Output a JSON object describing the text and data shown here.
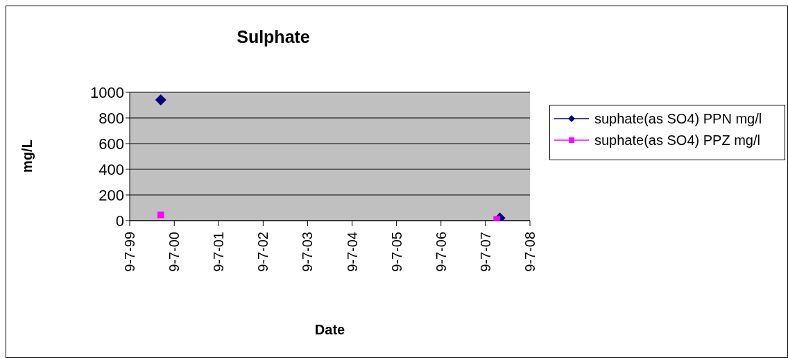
{
  "chart_data": {
    "type": "scatter",
    "title": "Sulphate",
    "xlabel": "Date",
    "ylabel": "mg/L",
    "series": [
      {
        "name": "suphate(as SO4) PPN mg/l",
        "color": "#000080",
        "marker": "diamond",
        "x": [
          "2000-03-20",
          "2007-11-05"
        ],
        "values": [
          940,
          20
        ]
      },
      {
        "name": "suphate(as SO4) PPZ mg/l",
        "color": "#ff00ff",
        "marker": "square",
        "x": [
          "2000-03-20",
          "2007-10-10"
        ],
        "values": [
          45,
          10
        ]
      }
    ],
    "xlim": [
      "1999-07-09",
      "2008-07-09"
    ],
    "xticks": [
      {
        "value": "1999-07-09",
        "label": "9-7-99"
      },
      {
        "value": "2000-07-09",
        "label": "9-7-00"
      },
      {
        "value": "2001-07-09",
        "label": "9-7-01"
      },
      {
        "value": "2002-07-09",
        "label": "9-7-02"
      },
      {
        "value": "2003-07-09",
        "label": "9-7-03"
      },
      {
        "value": "2004-07-09",
        "label": "9-7-04"
      },
      {
        "value": "2005-07-09",
        "label": "9-7-05"
      },
      {
        "value": "2006-07-09",
        "label": "9-7-06"
      },
      {
        "value": "2007-07-09",
        "label": "9-7-07"
      },
      {
        "value": "2008-07-09",
        "label": "9-7-08"
      }
    ],
    "ylim": [
      0,
      1000
    ],
    "yticks": [
      0,
      200,
      400,
      600,
      800,
      1000
    ],
    "grid": "y",
    "legend": "right"
  }
}
